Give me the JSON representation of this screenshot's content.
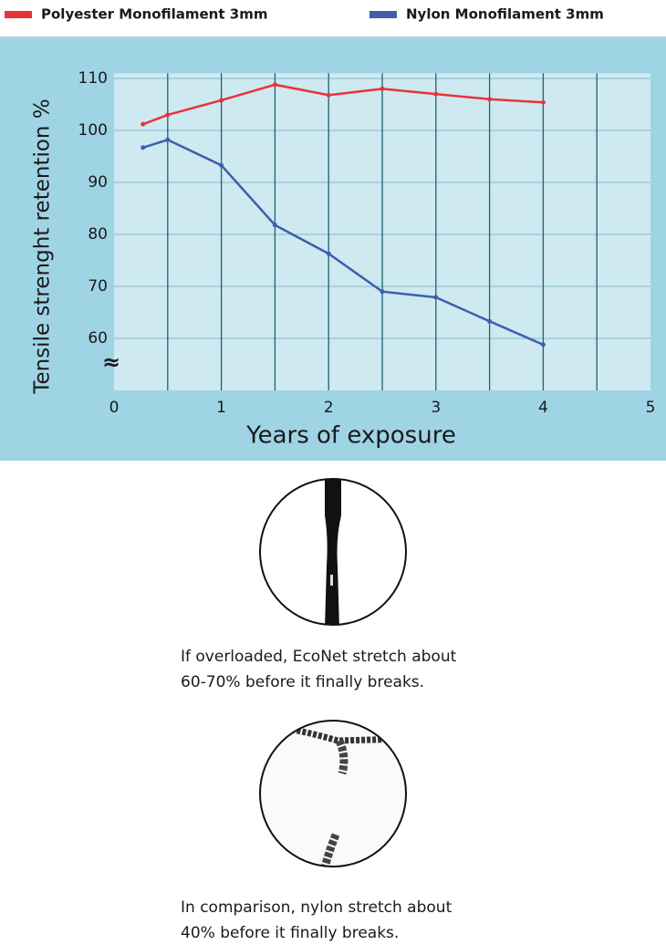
{
  "chart_data": {
    "type": "line",
    "x_label": "Years of exposure",
    "y_label": "Tensile strenght retention %",
    "axis_break": "≈",
    "xlim": [
      0,
      5
    ],
    "xticks": [
      0,
      1,
      2,
      3,
      4,
      5
    ],
    "xgrid": [
      0.5,
      1,
      1.5,
      2,
      2.5,
      3,
      3.5,
      4,
      4.5
    ],
    "ylim": [
      50,
      111
    ],
    "yticks": [
      60,
      70,
      80,
      90,
      100,
      110
    ],
    "grid": true,
    "legend": "top",
    "series": [
      {
        "name": "Polyester Monofilament 3mm",
        "color": "#e8333a",
        "x": [
          0.27,
          0.5,
          1,
          1.5,
          2,
          2.5,
          3,
          3.5,
          4
        ],
        "values": [
          101.2,
          103,
          105.8,
          108.8,
          106.8,
          108,
          107,
          106,
          105.4
        ]
      },
      {
        "name": "Nylon Monofilament 3mm",
        "color": "#3d5fae",
        "x": [
          0.27,
          0.5,
          1,
          1.5,
          2,
          2.5,
          3,
          3.5,
          4
        ],
        "values": [
          96.7,
          98.2,
          93.3,
          81.8,
          76.3,
          69,
          67.9,
          63.3,
          58.8
        ]
      }
    ]
  },
  "captions": [
    {
      "lines": [
        "If overloaded, EcoNet stretch about",
        "60-70% before it finally breaks."
      ]
    },
    {
      "lines": [
        "In comparison, nylon stretch about",
        "40% before it finally breaks."
      ]
    }
  ]
}
